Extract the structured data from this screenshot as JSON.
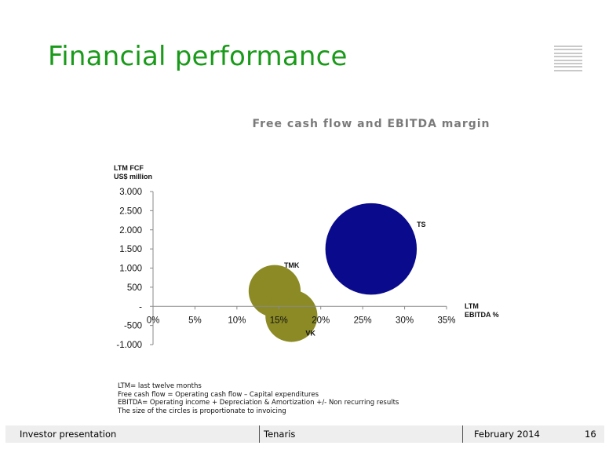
{
  "page": {
    "title": "Financial performance"
  },
  "notes": [
    "LTM= last twelve months",
    "Free cash flow = Operating cash flow – Capital expenditures",
    "EBITDA= Operating income + Depreciation & Amortization +/- Non recurring results",
    "The size of the circles is proportionate to invoicing"
  ],
  "footer": {
    "left": "Investor presentation",
    "center": "Tenaris",
    "date": "February 2014",
    "page_number": "16"
  },
  "chart_data": {
    "type": "scatter",
    "title": "Free cash flow and EBITDA margin",
    "ylabel": [
      "LTM FCF",
      "US$ million"
    ],
    "xlabel": [
      "LTM",
      "EBITDA %"
    ],
    "xlim": [
      0,
      35
    ],
    "ylim": [
      -1000,
      3000
    ],
    "x_ticks": [
      0,
      5,
      10,
      15,
      20,
      25,
      30,
      35
    ],
    "x_tick_labels": [
      "0%",
      "5%",
      "10%",
      "15%",
      "20%",
      "25%",
      "30%",
      "35%"
    ],
    "y_ticks": [
      3000,
      2500,
      2000,
      1500,
      1000,
      500,
      0,
      -500,
      -1000
    ],
    "y_tick_labels": [
      "3.000",
      "2.500",
      "2.000",
      "1.500",
      "1.000",
      "500",
      "-",
      "-500",
      "-1.000"
    ],
    "grid": false,
    "bubbles": [
      {
        "label": "TS",
        "x": 26,
        "y": 1500,
        "size": 10.9,
        "color": "#0a0a8c"
      },
      {
        "label": "TMK",
        "x": 14.5,
        "y": 400,
        "size": 6.2,
        "color": "#8b8a25"
      },
      {
        "label": "VK",
        "x": 16.5,
        "y": -250,
        "size": 6.2,
        "color": "#8b8a25"
      }
    ]
  }
}
